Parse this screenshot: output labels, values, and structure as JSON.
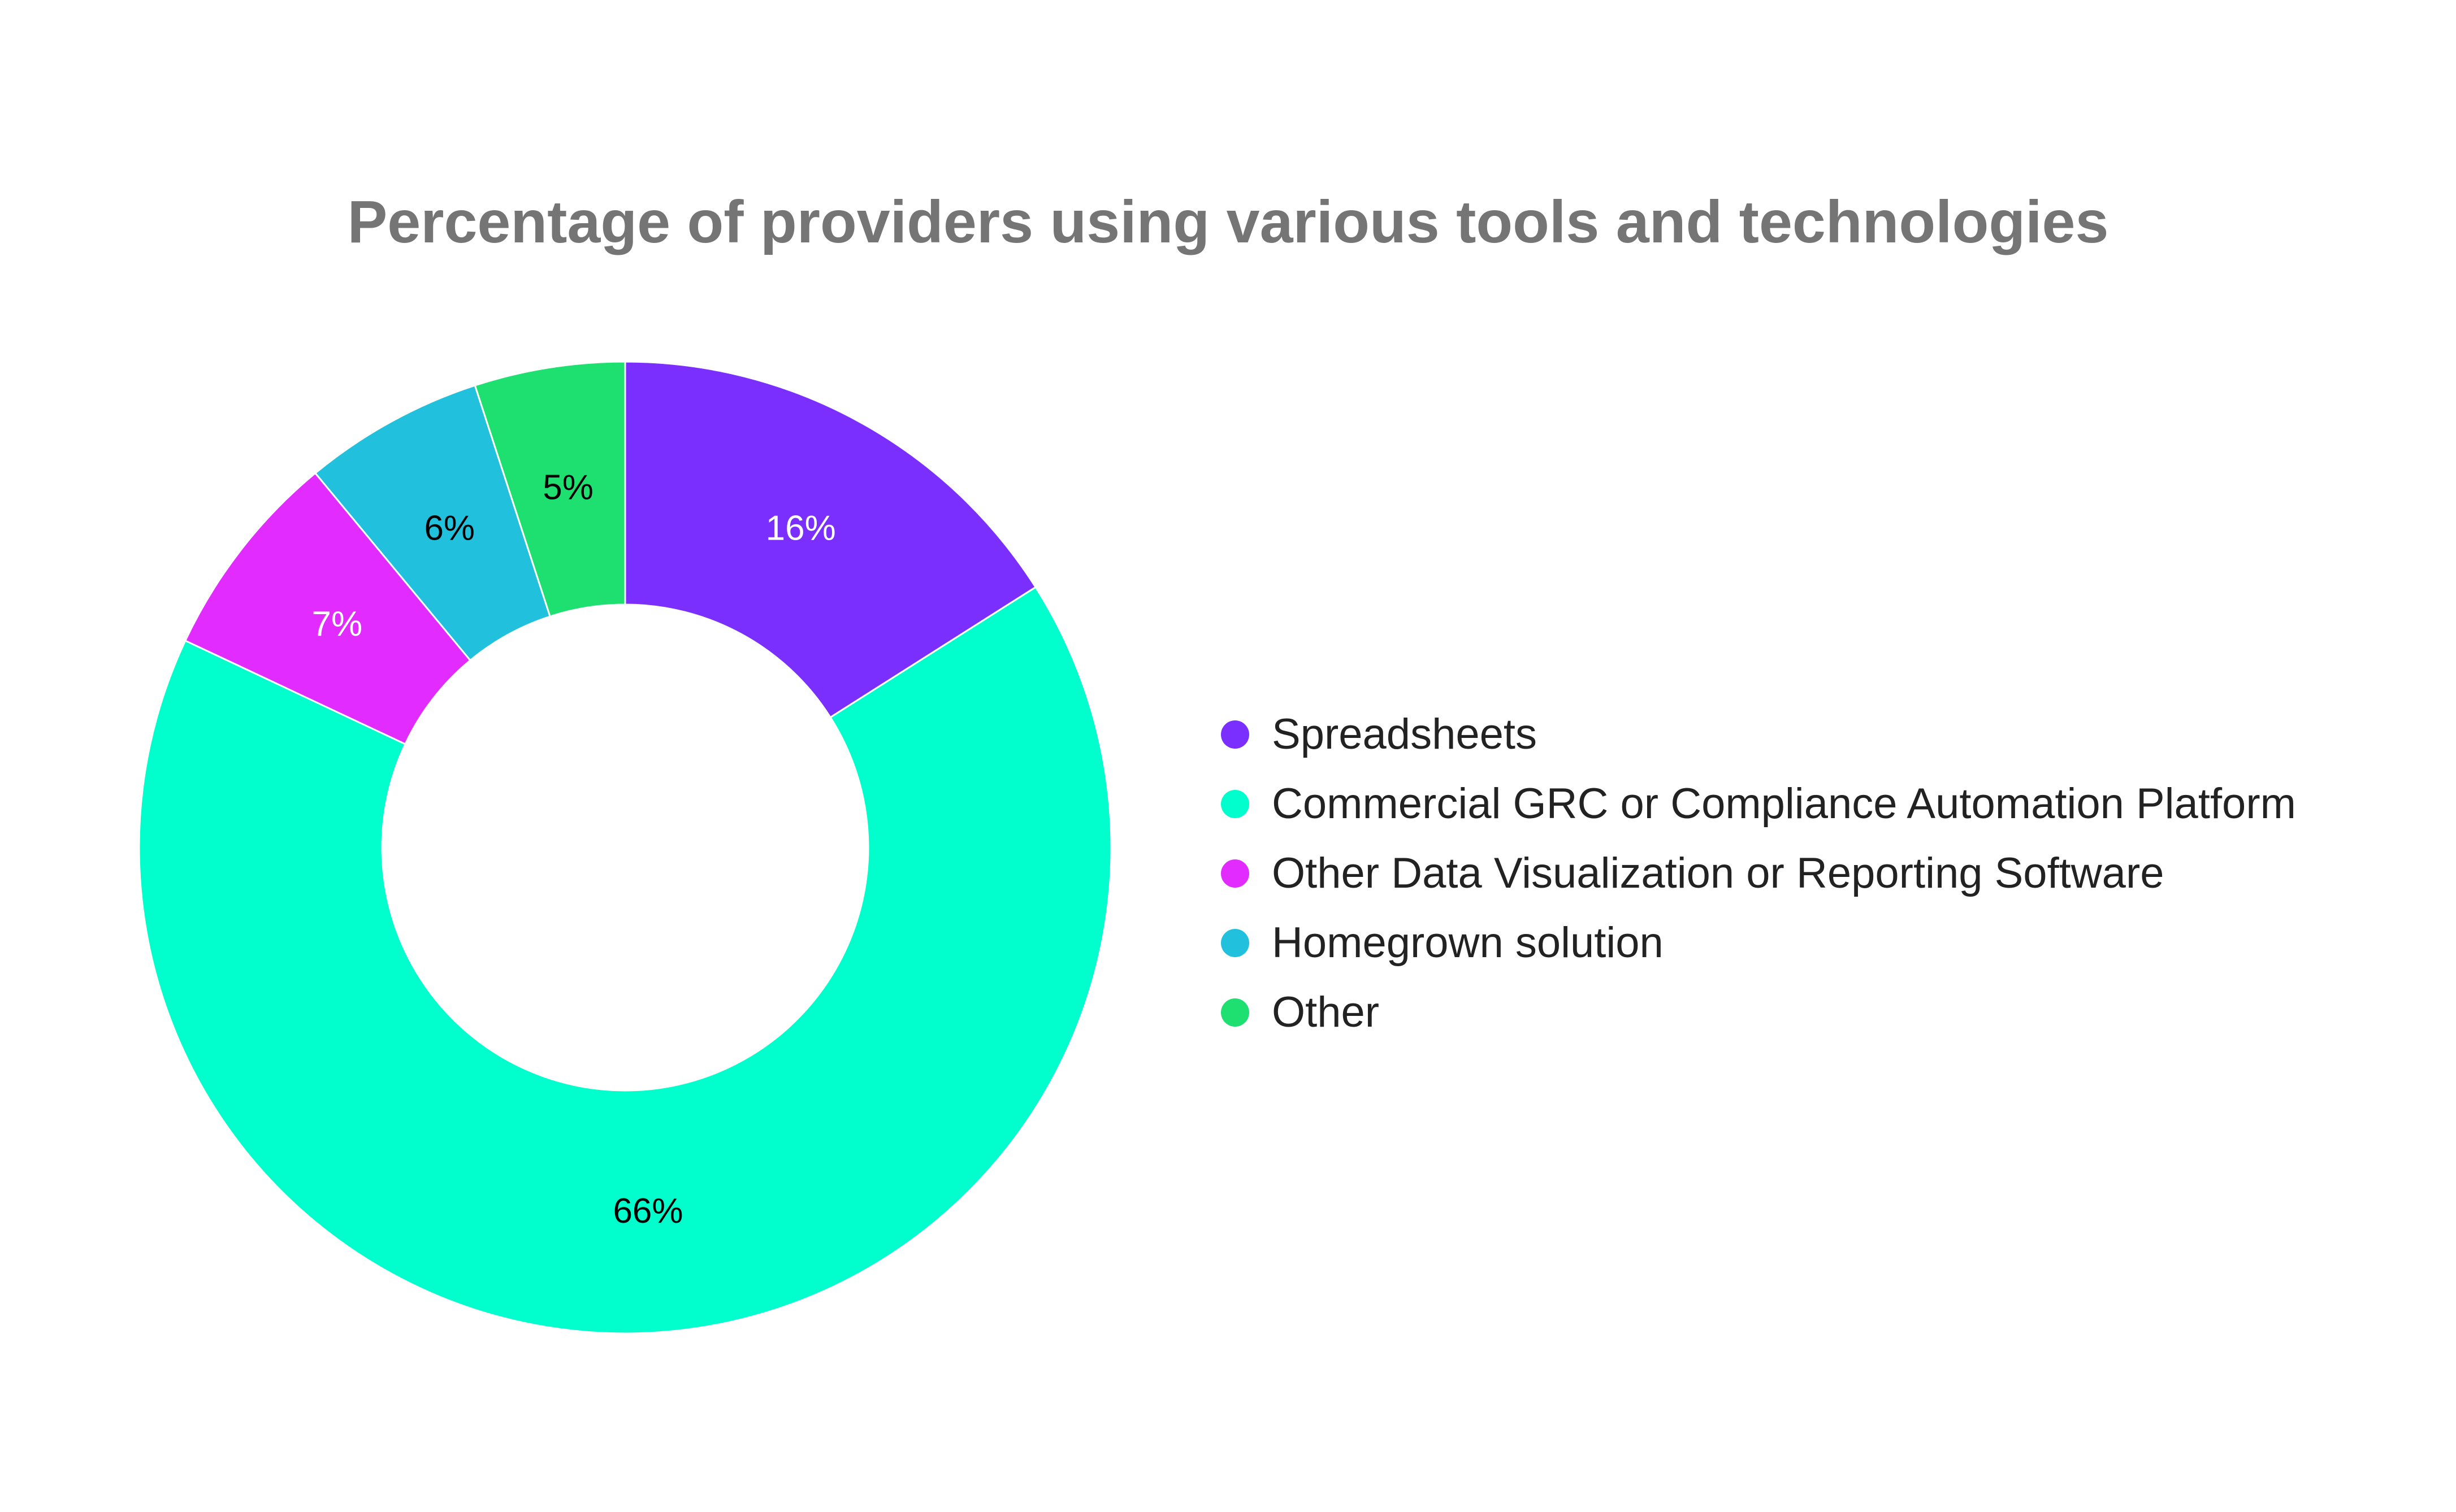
{
  "chart_data": {
    "type": "pie",
    "title": "Percentage of providers using various tools and technologies",
    "categories": [
      "Spreadsheets",
      "Commercial GRC or Compliance Automation Platform",
      "Other Data Visualization or Reporting Software",
      "Homegrown solution",
      "Other"
    ],
    "values": [
      16,
      66,
      7,
      6,
      5
    ],
    "labels": [
      "16%",
      "66%",
      "7%",
      "6%",
      "5%"
    ],
    "colors": [
      "#7b2fff",
      "#00ffcc",
      "#e22bff",
      "#21c0dd",
      "#1ee070"
    ],
    "label_colors": [
      "#ffffff",
      "#000000",
      "#ffffff",
      "#000000",
      "#000000"
    ],
    "donut": true,
    "legend_position": "right"
  }
}
